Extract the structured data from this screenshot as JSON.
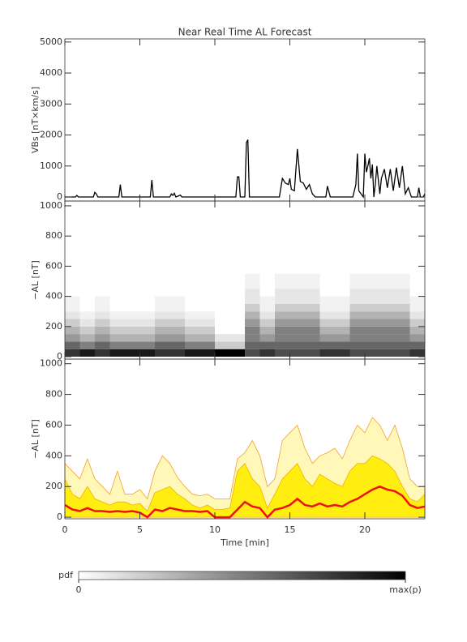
{
  "chart_data": [
    {
      "type": "line",
      "title": "Near Real Time AL Forecast",
      "ylabel": "VBs [nT×km/s]",
      "color": "#000000",
      "xlim": [
        0,
        24
      ],
      "xticks": [
        0,
        5,
        10,
        15,
        20
      ],
      "ylim": [
        -130,
        5100
      ],
      "yticks": [
        0,
        1000,
        2000,
        3000,
        4000,
        5000
      ],
      "x": [
        0,
        0.7,
        0.8,
        0.9,
        1.9,
        2.0,
        2.1,
        2.2,
        3.6,
        3.7,
        3.8,
        5.7,
        5.8,
        5.9,
        7.0,
        7.1,
        7.2,
        7.3,
        7.4,
        7.7,
        7.8,
        11.4,
        11.5,
        11.6,
        11.7,
        12.0,
        12.1,
        12.2,
        12.3,
        14.3,
        14.5,
        14.7,
        14.9,
        15.0,
        15.1,
        15.3,
        15.5,
        15.7,
        15.9,
        16.1,
        16.3,
        16.5,
        16.7,
        17.4,
        17.5,
        17.7,
        19.2,
        19.4,
        19.5,
        19.6,
        19.9,
        20.0,
        20.1,
        20.2,
        20.3,
        20.4,
        20.5,
        20.6,
        20.7,
        20.8,
        21.0,
        21.1,
        21.3,
        21.5,
        21.7,
        21.9,
        22.1,
        22.3,
        22.5,
        22.7,
        22.9,
        23.1,
        23.5,
        23.6,
        23.7,
        23.9,
        24.0
      ],
      "values": [
        0,
        0,
        50,
        0,
        0,
        150,
        100,
        0,
        0,
        400,
        0,
        0,
        550,
        0,
        0,
        100,
        50,
        120,
        0,
        60,
        0,
        0,
        650,
        650,
        0,
        0,
        1750,
        1850,
        0,
        0,
        600,
        450,
        400,
        600,
        250,
        200,
        1550,
        500,
        450,
        250,
        400,
        100,
        0,
        0,
        350,
        0,
        0,
        400,
        1400,
        200,
        0,
        1400,
        800,
        1000,
        1250,
        600,
        1050,
        0,
        400,
        1000,
        100,
        600,
        900,
        300,
        900,
        200,
        950,
        300,
        1000,
        100,
        300,
        0,
        0,
        300,
        0,
        0,
        100
      ]
    },
    {
      "type": "heatmap",
      "ylabel": "−AL [nT]",
      "xlim": [
        0,
        24
      ],
      "xticks": [
        0,
        5,
        10,
        15,
        20
      ],
      "ylim": [
        -16,
        1032
      ],
      "yticks": [
        0,
        200,
        400,
        600,
        800,
        1000
      ],
      "xbins": [
        0,
        1,
        2,
        3,
        4,
        5,
        6,
        7,
        8,
        9,
        10,
        11,
        12,
        13,
        14,
        15,
        16,
        17,
        18,
        19,
        20,
        21,
        22,
        23,
        24
      ],
      "ybins": [
        0,
        50,
        100,
        150,
        200,
        250,
        300,
        350,
        400,
        450,
        500,
        550,
        600
      ],
      "z": [
        [
          0.8,
          0.6,
          0.4,
          0.3,
          0.2,
          0.1,
          0.05,
          0.05,
          0,
          0,
          0,
          0
        ],
        [
          0.9,
          0.5,
          0.3,
          0.2,
          0.1,
          0.05,
          0,
          0,
          0,
          0,
          0,
          0
        ],
        [
          0.8,
          0.6,
          0.4,
          0.3,
          0.2,
          0.1,
          0.05,
          0.05,
          0,
          0,
          0,
          0
        ],
        [
          0.9,
          0.5,
          0.3,
          0.2,
          0.1,
          0.05,
          0,
          0,
          0,
          0,
          0,
          0
        ],
        [
          0.9,
          0.5,
          0.3,
          0.2,
          0.1,
          0.05,
          0,
          0,
          0,
          0,
          0,
          0
        ],
        [
          0.9,
          0.5,
          0.3,
          0.2,
          0.1,
          0.05,
          0,
          0,
          0,
          0,
          0,
          0
        ],
        [
          0.8,
          0.6,
          0.4,
          0.3,
          0.2,
          0.1,
          0.05,
          0.05,
          0,
          0,
          0,
          0
        ],
        [
          0.8,
          0.6,
          0.4,
          0.3,
          0.2,
          0.1,
          0.05,
          0.05,
          0,
          0,
          0,
          0
        ],
        [
          0.9,
          0.5,
          0.3,
          0.2,
          0.1,
          0.05,
          0,
          0,
          0,
          0,
          0,
          0
        ],
        [
          0.9,
          0.5,
          0.3,
          0.2,
          0.1,
          0.05,
          0,
          0,
          0,
          0,
          0,
          0
        ],
        [
          1,
          0.2,
          0.1,
          0,
          0,
          0,
          0,
          0,
          0,
          0,
          0,
          0
        ],
        [
          1,
          0.2,
          0.1,
          0,
          0,
          0,
          0,
          0,
          0,
          0,
          0,
          0
        ],
        [
          0.7,
          0.6,
          0.5,
          0.5,
          0.4,
          0.3,
          0.2,
          0.1,
          0.1,
          0.05,
          0.05,
          0
        ],
        [
          0.8,
          0.6,
          0.4,
          0.3,
          0.2,
          0.1,
          0.05,
          0.05,
          0,
          0,
          0,
          0
        ],
        [
          0.7,
          0.6,
          0.5,
          0.5,
          0.4,
          0.3,
          0.2,
          0.1,
          0.1,
          0.05,
          0.05,
          0
        ],
        [
          0.7,
          0.6,
          0.5,
          0.5,
          0.4,
          0.3,
          0.2,
          0.1,
          0.1,
          0.05,
          0.05,
          0
        ],
        [
          0.7,
          0.6,
          0.5,
          0.5,
          0.4,
          0.3,
          0.2,
          0.1,
          0.1,
          0.05,
          0.05,
          0
        ],
        [
          0.8,
          0.6,
          0.4,
          0.3,
          0.2,
          0.1,
          0.05,
          0.05,
          0,
          0,
          0,
          0
        ],
        [
          0.8,
          0.6,
          0.4,
          0.3,
          0.2,
          0.1,
          0.05,
          0.05,
          0,
          0,
          0,
          0
        ],
        [
          0.7,
          0.6,
          0.5,
          0.5,
          0.4,
          0.3,
          0.2,
          0.1,
          0.1,
          0.05,
          0.05,
          0
        ],
        [
          0.7,
          0.6,
          0.5,
          0.5,
          0.4,
          0.3,
          0.2,
          0.1,
          0.1,
          0.05,
          0.05,
          0
        ],
        [
          0.7,
          0.6,
          0.5,
          0.5,
          0.4,
          0.3,
          0.2,
          0.1,
          0.1,
          0.05,
          0.05,
          0
        ],
        [
          0.7,
          0.6,
          0.5,
          0.5,
          0.4,
          0.3,
          0.2,
          0.1,
          0.1,
          0.05,
          0.05,
          0
        ],
        [
          0.8,
          0.6,
          0.4,
          0.3,
          0.2,
          0.1,
          0.05,
          0.05,
          0,
          0,
          0,
          0
        ]
      ]
    },
    {
      "type": "area",
      "ylabel": "−AL [nT]",
      "xlabel": "Time [min]",
      "xlim": [
        0,
        24
      ],
      "xticks": [
        0,
        5,
        10,
        15,
        20
      ],
      "ylim": [
        -10,
        1030
      ],
      "yticks": [
        0,
        200,
        400,
        600,
        800,
        1000
      ],
      "x": [
        0,
        0.5,
        1,
        1.5,
        2,
        2.5,
        3,
        3.5,
        4,
        4.5,
        5,
        5.5,
        6,
        6.5,
        7,
        7.5,
        8,
        8.5,
        9,
        9.5,
        10,
        10.5,
        11,
        11.5,
        12,
        12.5,
        13,
        13.5,
        14,
        14.5,
        15,
        15.5,
        16,
        16.5,
        17,
        17.5,
        18,
        18.5,
        19,
        19.5,
        20,
        20.5,
        21,
        21.5,
        22,
        22.5,
        23,
        23.5,
        24
      ],
      "series": [
        {
          "color": "#f0a030",
          "fill": "#fff8b8",
          "values": [
            350,
            300,
            250,
            380,
            250,
            200,
            150,
            300,
            150,
            150,
            180,
            120,
            300,
            400,
            350,
            260,
            200,
            150,
            140,
            150,
            120,
            120,
            120,
            380,
            420,
            500,
            400,
            200,
            250,
            500,
            550,
            600,
            450,
            350,
            400,
            420,
            450,
            380,
            500,
            600,
            550,
            650,
            600,
            500,
            600,
            450,
            250,
            200,
            200
          ]
        },
        {
          "color": "#f0b000",
          "fill": "#ffee10",
          "values": [
            250,
            150,
            120,
            200,
            120,
            100,
            80,
            100,
            100,
            80,
            90,
            40,
            160,
            180,
            200,
            150,
            120,
            80,
            60,
            80,
            50,
            50,
            60,
            300,
            350,
            250,
            200,
            60,
            150,
            250,
            300,
            350,
            250,
            200,
            280,
            250,
            220,
            200,
            300,
            350,
            350,
            400,
            380,
            350,
            300,
            200,
            120,
            100,
            150
          ]
        },
        {
          "color": "#ee1111",
          "values": [
            80,
            50,
            40,
            60,
            40,
            40,
            35,
            40,
            35,
            40,
            30,
            0,
            50,
            40,
            60,
            50,
            40,
            40,
            35,
            40,
            0,
            0,
            0,
            50,
            100,
            70,
            60,
            0,
            50,
            60,
            80,
            120,
            80,
            70,
            90,
            70,
            80,
            70,
            100,
            120,
            150,
            180,
            200,
            180,
            170,
            140,
            80,
            60,
            70
          ]
        }
      ]
    }
  ],
  "colorbar": {
    "label": "pdf",
    "ticks": [
      0,
      {
        "value": 1,
        "label": "max(p)"
      }
    ]
  }
}
